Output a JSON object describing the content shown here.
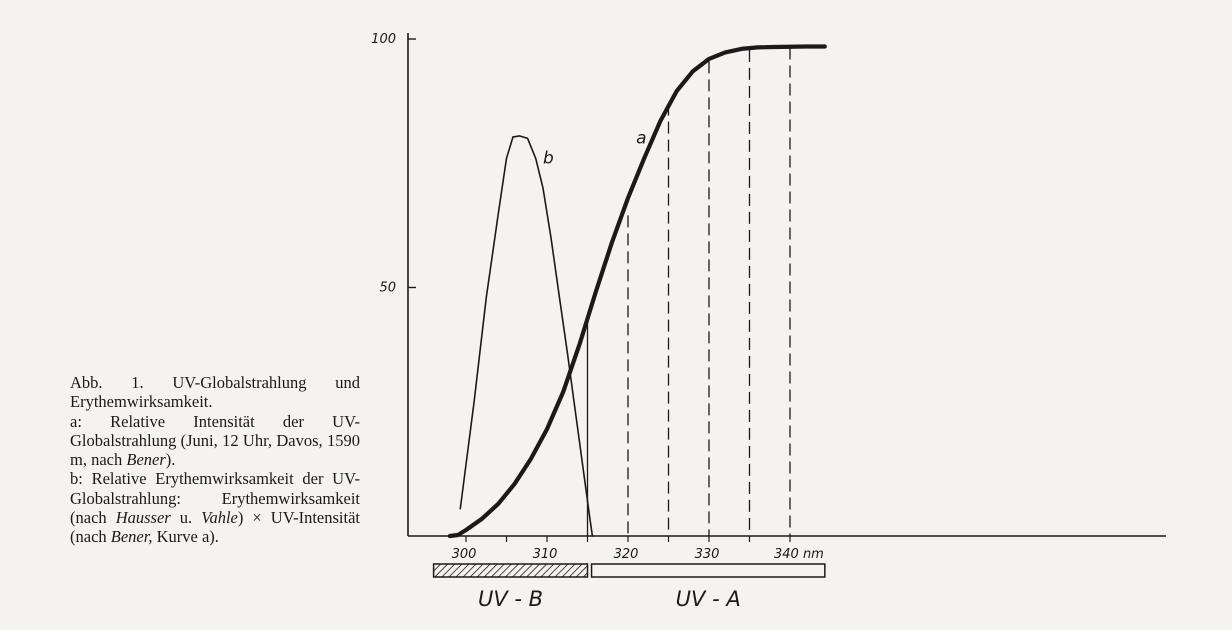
{
  "caption": {
    "title": "Abb. 1. UV-Globalstrahlung und Erythemwirksamkeit.",
    "a_part1": "a: Relative Intensität der UV-Globalstrahlung (Juni, 12 Uhr, Davos, 1590 m, nach ",
    "a_author": "Bener",
    "a_part2": ").",
    "b_part1": "b: Relative Erythemwirksamkeit der UV-Globalstrahlung: Erythemwirksamkeit (nach ",
    "b_author1": "Hausser",
    "b_mid": " u. ",
    "b_author2": "Vahle",
    "b_part2": ") × UV-Intensität (nach ",
    "b_author3": "Bener,",
    "b_part3": " Kurve a)."
  },
  "chart_data": {
    "type": "line",
    "x_unit": "nm",
    "xlim": [
      296,
      344
    ],
    "ylim": [
      0,
      100
    ],
    "x_ticks": [
      300,
      305,
      310,
      315,
      320,
      325,
      330,
      335,
      340
    ],
    "x_tick_labels": [
      {
        "x": 300,
        "label": "300"
      },
      {
        "x": 310,
        "label": "310"
      },
      {
        "x": 320,
        "label": "320"
      },
      {
        "x": 330,
        "label": "330"
      },
      {
        "x": 340,
        "label": "340 nm"
      }
    ],
    "y_tick_labels": [
      {
        "y": 50,
        "label": "50"
      },
      {
        "y": 100,
        "label": "100"
      }
    ],
    "series": [
      {
        "name": "a",
        "stroke": "#1a1a1a",
        "points": [
          [
            298,
            0
          ],
          [
            299,
            0.2
          ],
          [
            300,
            1.2
          ],
          [
            302,
            3.5
          ],
          [
            304,
            6.5
          ],
          [
            306,
            10.5
          ],
          [
            308,
            15.5
          ],
          [
            310,
            21.5
          ],
          [
            312,
            29
          ],
          [
            314,
            38.5
          ],
          [
            316,
            49
          ],
          [
            318,
            59
          ],
          [
            320,
            68
          ],
          [
            322,
            76
          ],
          [
            324,
            83.5
          ],
          [
            326,
            89.5
          ],
          [
            328,
            93.5
          ],
          [
            330,
            96
          ],
          [
            332,
            97.3
          ],
          [
            334,
            98
          ],
          [
            336,
            98.3
          ],
          [
            338,
            98.4
          ],
          [
            342,
            98.5
          ],
          [
            344.3,
            98.5
          ]
        ]
      },
      {
        "name": "b",
        "stroke": "#1a1a1a",
        "points": [
          [
            299.3,
            5.5
          ],
          [
            301,
            27
          ],
          [
            302.5,
            48
          ],
          [
            304,
            65
          ],
          [
            305,
            76
          ],
          [
            305.8,
            80.3
          ],
          [
            306.6,
            80.5
          ],
          [
            307.6,
            80
          ],
          [
            308.6,
            76
          ],
          [
            309.5,
            70
          ],
          [
            310.5,
            60
          ],
          [
            311.5,
            48.5
          ],
          [
            312.5,
            37
          ],
          [
            313.5,
            25
          ],
          [
            314.5,
            13
          ],
          [
            315.3,
            3.5
          ],
          [
            315.6,
            0
          ]
        ]
      }
    ],
    "vertical_lines": [
      {
        "x": 315,
        "from": 0,
        "to": 44.5,
        "style": "solid"
      },
      {
        "x": 320,
        "from": 0,
        "to": 64.5,
        "style": "dashed"
      },
      {
        "x": 325,
        "from": 0,
        "to": 87,
        "style": "dashed"
      },
      {
        "x": 330,
        "from": 0,
        "to": 95.5,
        "style": "dashed"
      },
      {
        "x": 335,
        "from": 0,
        "to": 97.8,
        "style": "dashed"
      },
      {
        "x": 340,
        "from": 0,
        "to": 98.3,
        "style": "dashed"
      }
    ],
    "curve_labels": [
      {
        "text": "a",
        "x": 321,
        "y": 79
      },
      {
        "text": "b",
        "x": 309.5,
        "y": 75
      }
    ],
    "bands": [
      {
        "label": "UV - B",
        "from": 296,
        "to": 315,
        "style": "hatched"
      },
      {
        "label": "UV - A",
        "from": 315.5,
        "to": 344.3,
        "style": "open"
      }
    ]
  }
}
